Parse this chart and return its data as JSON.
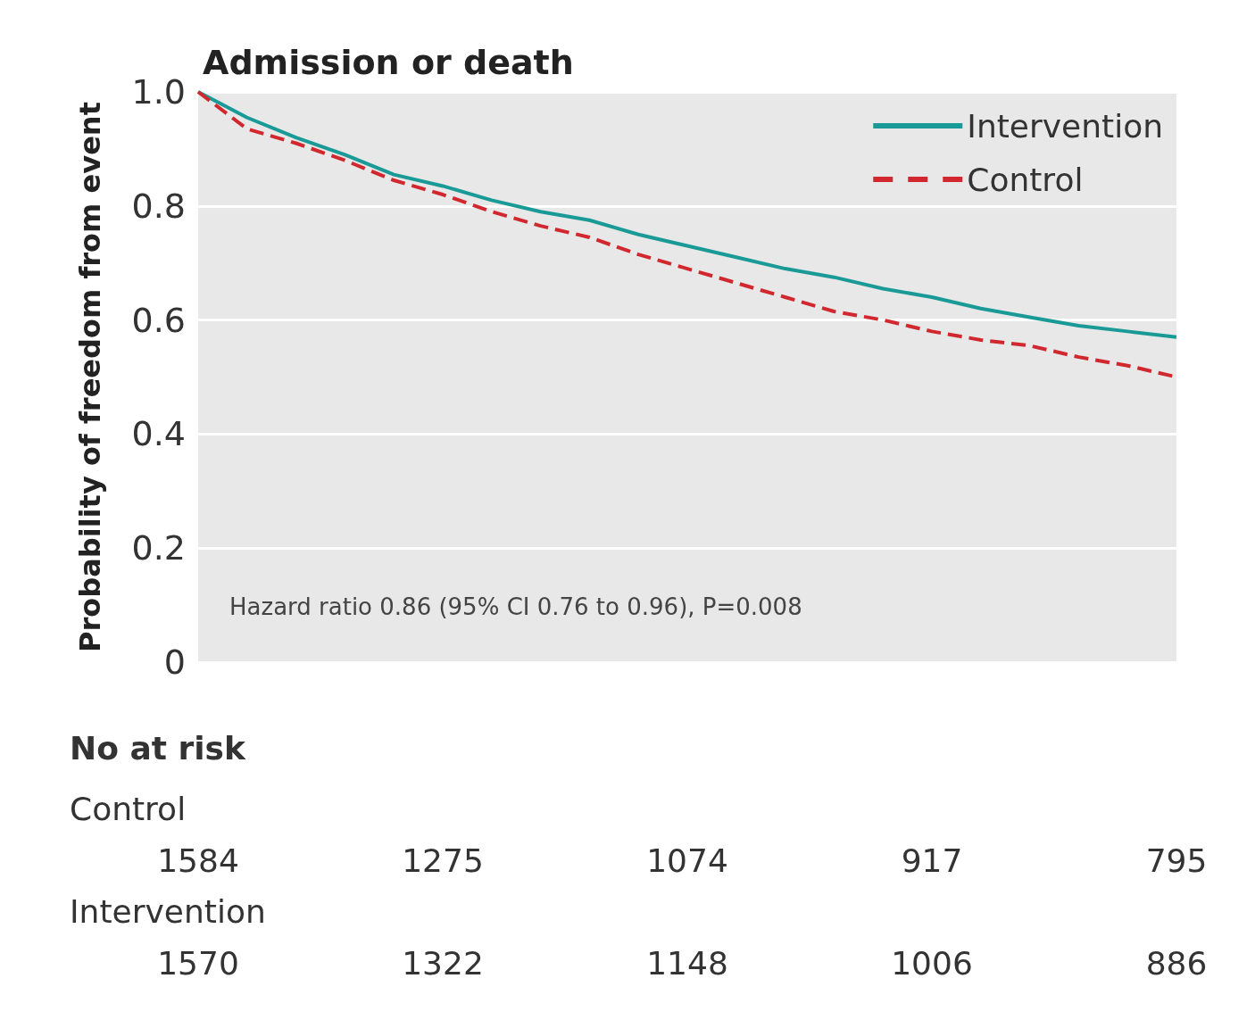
{
  "chart_data": {
    "type": "line",
    "title": "Admission or death",
    "ylabel": "Probability of freedom from event",
    "categories": [
      null,
      null,
      null,
      null,
      null,
      null,
      null,
      null,
      null,
      null,
      null,
      null,
      null,
      null,
      null,
      null,
      null,
      null,
      null,
      null,
      null
    ],
    "series": [
      {
        "name": "Intervention",
        "color": "#1a9a96",
        "line_style": "solid",
        "values": [
          1.0,
          0.955,
          0.92,
          0.89,
          0.855,
          0.835,
          0.81,
          0.79,
          0.775,
          0.75,
          0.73,
          0.71,
          0.69,
          0.675,
          0.655,
          0.64,
          0.62,
          0.605,
          0.59,
          0.58,
          0.57
        ]
      },
      {
        "name": "Control",
        "color": "#d0282e",
        "line_style": "dashed",
        "values": [
          1.0,
          0.935,
          0.91,
          0.88,
          0.845,
          0.82,
          0.79,
          0.765,
          0.745,
          0.715,
          0.69,
          0.665,
          0.64,
          0.615,
          0.6,
          0.58,
          0.565,
          0.555,
          0.535,
          0.52,
          0.5
        ]
      }
    ],
    "ylim": [
      0,
      1
    ],
    "yticks": [
      {
        "value": 0,
        "label": "0"
      },
      0.2,
      0.4,
      0.6,
      0.8,
      {
        "value": 1,
        "label": "1.0"
      }
    ],
    "grid": "y",
    "legend": "top right",
    "marker": "none",
    "tick_labels": "y",
    "annotations": [
      "Hazard ratio 0.86 (95% CI 0.76 to 0.96), P=0.008",
      "No at risk",
      "Control",
      "1584",
      "1275",
      "1074",
      "917",
      "795",
      "Intervention",
      "1570",
      "1322",
      "1148",
      "1006",
      "886"
    ]
  }
}
